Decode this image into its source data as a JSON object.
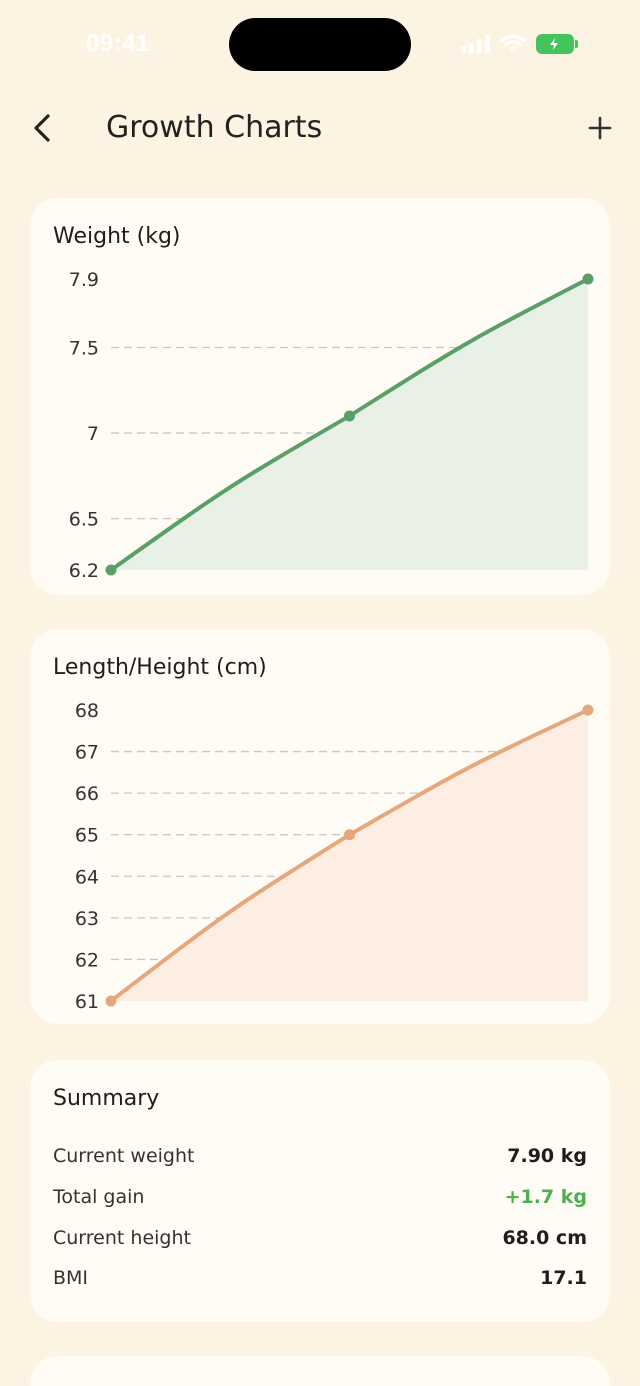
{
  "status_bar": {
    "time": "09:41"
  },
  "header": {
    "title": "Growth Charts"
  },
  "weight_card": {
    "title": "Weight (kg)"
  },
  "height_card": {
    "title": "Length/Height (cm)"
  },
  "summary": {
    "title": "Summary",
    "rows": [
      {
        "label": "Current weight",
        "value": "7.90 kg"
      },
      {
        "label": "Total gain",
        "value": "+1.7 kg"
      },
      {
        "label": "Current height",
        "value": "68.0 cm"
      },
      {
        "label": "BMI",
        "value": "17.1"
      }
    ]
  },
  "colors": {
    "background": "#fdf3e3",
    "card": "#fffcf6",
    "weight_line": "#5a9e68",
    "weight_fill": "#e9f1e6",
    "height_line": "#e6a77a",
    "height_fill": "#fdeee4",
    "gain": "#4caf50"
  },
  "icons": {
    "back": "chevron-left-icon",
    "add": "plus-icon"
  },
  "chart_data": [
    {
      "type": "area",
      "title": "Weight (kg)",
      "ytick_labels": [
        "6.2",
        "6.5",
        "7",
        "7.5",
        "7.9"
      ],
      "ylim": [
        6.2,
        7.9
      ],
      "x": [
        0,
        1,
        2
      ],
      "values": [
        6.2,
        7.1,
        7.9
      ],
      "grid": true,
      "color": "#5a9e68"
    },
    {
      "type": "area",
      "title": "Length/Height (cm)",
      "ytick_labels": [
        "61",
        "62",
        "63",
        "64",
        "65",
        "66",
        "67",
        "68"
      ],
      "ylim": [
        61,
        68
      ],
      "x": [
        0,
        1,
        2
      ],
      "values": [
        61,
        65,
        68
      ],
      "grid": true,
      "color": "#e6a77a"
    }
  ]
}
